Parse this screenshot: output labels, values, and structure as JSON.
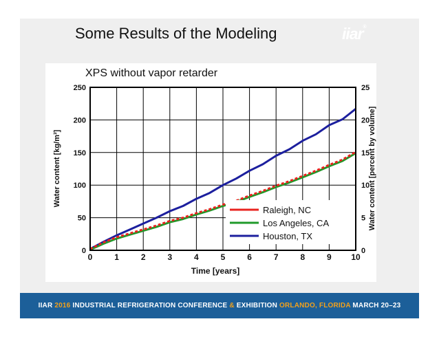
{
  "slide": {
    "title": "Some Results of the Modeling",
    "logo": "iiar",
    "logo_mark": "®"
  },
  "footer": {
    "part1": "IIAR",
    "part2": "2016",
    "part3": "INDUSTRIAL REFRIGERATION CONFERENCE",
    "part4": "&",
    "part5": "EXHIBITION",
    "part6": "ORLANDO, FLORIDA",
    "part7": "MARCH 20–23",
    "accent_color": "#f2a11b",
    "bar_color": "#1c5f99"
  },
  "chart_data": {
    "type": "line",
    "title": "XPS without vapor retarder",
    "xlabel": "Time [years]",
    "ylabel": "Water content [kg/m³]",
    "y2label": "Water content [percent by volume]",
    "xlim": [
      0,
      10
    ],
    "ylim": [
      0,
      250
    ],
    "y2lim": [
      0,
      25
    ],
    "x_ticks": [
      "0",
      "1",
      "2",
      "3",
      "4",
      "5",
      "6",
      "7",
      "8",
      "9",
      "10"
    ],
    "y_ticks": [
      "0",
      "50",
      "100",
      "150",
      "200",
      "250"
    ],
    "y2_ticks": [
      "0",
      "5",
      "10",
      "15",
      "20",
      "25"
    ],
    "grid": true,
    "legend_position": "bottom-right",
    "x": [
      0,
      0.5,
      1,
      1.5,
      2,
      2.5,
      3,
      3.5,
      4,
      4.5,
      5,
      5.5,
      6,
      6.5,
      7,
      7.5,
      8,
      8.5,
      9,
      9.5,
      10
    ],
    "series": [
      {
        "name": "Raleigh, NC",
        "color": "#e8231f",
        "dashed": true,
        "values": [
          2,
          12,
          20,
          26,
          32,
          38,
          45,
          50,
          57,
          63,
          70,
          76,
          84,
          91,
          99,
          106,
          114,
          122,
          131,
          139,
          151
        ]
      },
      {
        "name": "Los Angeles, CA",
        "color": "#1f9a2a",
        "values": [
          1,
          10,
          18,
          24,
          30,
          36,
          43,
          48,
          55,
          61,
          68,
          74,
          82,
          89,
          97,
          104,
          112,
          120,
          129,
          137,
          149
        ]
      },
      {
        "name": "Houston, TX",
        "color": "#1c1f9e",
        "values": [
          2,
          13,
          23,
          32,
          41,
          50,
          60,
          68,
          79,
          88,
          100,
          110,
          122,
          132,
          145,
          155,
          168,
          178,
          192,
          201,
          217
        ]
      }
    ]
  }
}
